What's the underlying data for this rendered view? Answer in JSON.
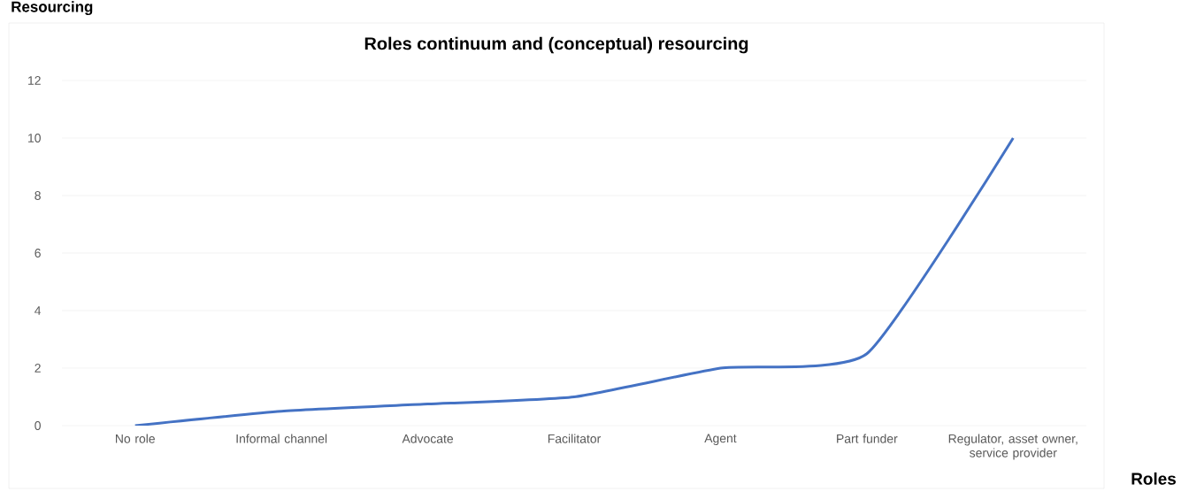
{
  "chart_data": {
    "type": "line",
    "title": "Roles continuum and (conceptual) resourcing",
    "xlabel": "Roles",
    "ylabel": "Resourcing",
    "categories": [
      "No role",
      "Informal channel",
      "Advocate",
      "Facilitator",
      "Agent",
      "Part funder",
      "Regulator, asset owner, service provider"
    ],
    "values": [
      0,
      0.5,
      0.75,
      1,
      2,
      2.5,
      10
    ],
    "color": "#4472c4",
    "ylim": [
      0,
      12
    ],
    "yticks": [
      0,
      2,
      4,
      6,
      8,
      10,
      12
    ],
    "grid": "y"
  }
}
